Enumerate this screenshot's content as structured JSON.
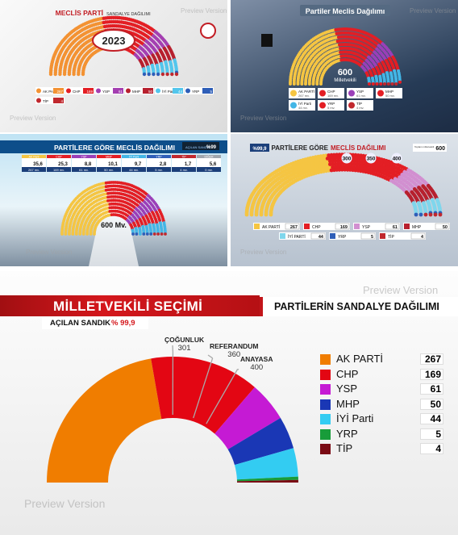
{
  "watermark": "Preview Version",
  "panel1": {
    "title": "MECLİS PARTİ",
    "subtitle": "SANDALYE DAĞILIMI",
    "year": "2023",
    "legend": [
      {
        "name": "AK PARTİ",
        "value": "267",
        "color": "#f39233"
      },
      {
        "name": "CHP",
        "value": "169",
        "color": "#e31e24"
      },
      {
        "name": "YSP",
        "value": "61",
        "color": "#a43fb1"
      },
      {
        "name": "MHP",
        "value": "50",
        "color": "#b7202e"
      },
      {
        "name": "İYİ Parti",
        "value": "44",
        "color": "#53c6ec"
      },
      {
        "name": "YRP",
        "value": "5",
        "color": "#2e5eb8"
      },
      {
        "name": "TİP",
        "value": "4",
        "color": "#c0282e"
      }
    ]
  },
  "panel2": {
    "title": "Partiler Meclis Dağılımı",
    "total": "600",
    "total_label": "Milletvekili",
    "legend": [
      {
        "name": "AK PARTİ",
        "value": "267 mv.",
        "color": "#f5c542"
      },
      {
        "name": "CHP",
        "value": "169 mv.",
        "color": "#e31e24"
      },
      {
        "name": "YSP",
        "value": "61 mv.",
        "color": "#9a3fb8"
      },
      {
        "name": "MHP",
        "value": "50 mv.",
        "color": "#e31e24"
      },
      {
        "name": "İYİ Parti",
        "value": "44 mv.",
        "color": "#43b6e6"
      },
      {
        "name": "YRP",
        "value": "5 mv.",
        "color": "#e31e24"
      },
      {
        "name": "TİP",
        "value": "4 mv.",
        "color": "#c0282e"
      }
    ]
  },
  "panel3": {
    "title": "PARTİLERE GÖRE MECLİS DAĞILIMI",
    "pct_label": "AÇILAN SANDIK",
    "pct": "%99",
    "center": "600 Mv.",
    "parties": [
      {
        "name": "AK Parti",
        "pct": "35,6",
        "seats": "267 mv."
      },
      {
        "name": "CHP",
        "pct": "25,3",
        "seats": "169 mv."
      },
      {
        "name": "YSP",
        "pct": "8,8",
        "seats": "61 mv."
      },
      {
        "name": "MHP",
        "pct": "10,1",
        "seats": "50 mv."
      },
      {
        "name": "İYİ Parti",
        "pct": "9,7",
        "seats": "44 mv."
      },
      {
        "name": "YRP",
        "pct": "2,8",
        "seats": "5 mv."
      },
      {
        "name": "TİP",
        "pct": "1,7",
        "seats": "4 mv."
      },
      {
        "name": "DİĞER",
        "pct": "5,6",
        "seats": "0 mv."
      }
    ]
  },
  "panel4": {
    "title_a": "PARTİLERE GÖRE",
    "title_b": "MECLİS DAĞILIMI",
    "pct": "%99,9",
    "total_label": "Toplam milletvekili",
    "total": "600",
    "thresholds": [
      "300",
      "350",
      "400"
    ],
    "legend": [
      {
        "name": "AK PARTİ",
        "value": "267"
      },
      {
        "name": "CHP",
        "value": "169"
      },
      {
        "name": "YSP",
        "value": "61"
      },
      {
        "name": "MHP",
        "value": "50"
      },
      {
        "name": "İYİ PARTİ",
        "value": "44"
      },
      {
        "name": "YRP",
        "value": "5"
      },
      {
        "name": "TİP",
        "value": "4"
      }
    ]
  },
  "main": {
    "title": "MİLLETVEKİLİ SEÇİMİ",
    "subtitle": "PARTİLERİN SANDALYE DAĞILIMI",
    "count_label": "AÇILAN SANDIK",
    "count_value": "% 99,9",
    "thresholds": [
      {
        "label": "ÇOĞUNLUK",
        "value": "301"
      },
      {
        "label": "REFERANDUM",
        "value": "360"
      },
      {
        "label": "ANAYASA",
        "value": "400"
      }
    ],
    "parties": [
      {
        "name": "AK PARTİ",
        "value": "267",
        "seats": 267,
        "color": "#f07d00"
      },
      {
        "name": "CHP",
        "value": "169",
        "seats": 169,
        "color": "#e30613"
      },
      {
        "name": "YSP",
        "value": "61",
        "seats": 61,
        "color": "#c51ad4"
      },
      {
        "name": "MHP",
        "value": "50",
        "seats": 50,
        "color": "#1a37b5"
      },
      {
        "name": "İYİ Parti",
        "value": "44",
        "seats": 44,
        "color": "#33ccf2"
      },
      {
        "name": "YRP",
        "value": "5",
        "seats": 5,
        "color": "#189c3a"
      },
      {
        "name": "TİP",
        "value": "4",
        "seats": 4,
        "color": "#7a0a14"
      }
    ]
  }
}
